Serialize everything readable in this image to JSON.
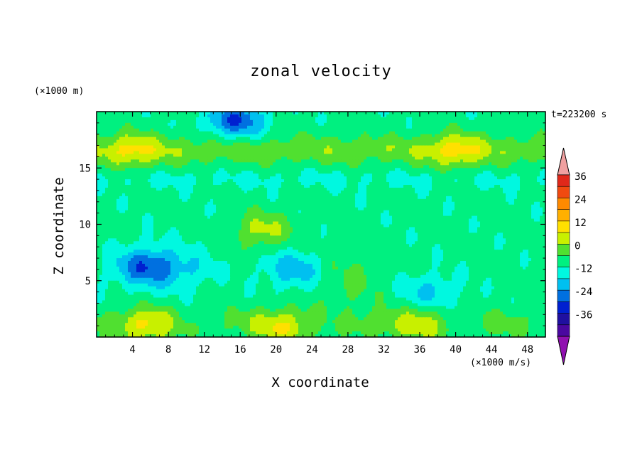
{
  "chart_data": {
    "type": "heatmap",
    "title": "zonal velocity",
    "xlabel": "X coordinate",
    "ylabel": "Z coordinate",
    "x_unit": "(×1000 m/s)",
    "y_unit": "(×1000 m)",
    "time_label": "t=223200 s",
    "xlim": [
      0,
      50
    ],
    "ylim": [
      0,
      20
    ],
    "x_ticks": [
      4,
      8,
      12,
      16,
      20,
      24,
      28,
      32,
      36,
      40,
      44,
      48
    ],
    "y_ticks": [
      5,
      10,
      15
    ],
    "colorbar": {
      "ticks": [
        36,
        24,
        12,
        0,
        -12,
        -24,
        -36
      ],
      "levels": [
        {
          "v": 36,
          "color": "#e0281a"
        },
        {
          "v": 30,
          "color": "#f04a10"
        },
        {
          "v": 24,
          "color": "#ff8a00"
        },
        {
          "v": 18,
          "color": "#ffb000"
        },
        {
          "v": 12,
          "color": "#ffe000"
        },
        {
          "v": 6,
          "color": "#c8f000"
        },
        {
          "v": 0,
          "color": "#50e030"
        },
        {
          "v": -6,
          "color": "#00f080"
        },
        {
          "v": -12,
          "color": "#00f8e0"
        },
        {
          "v": -18,
          "color": "#00c0f0"
        },
        {
          "v": -24,
          "color": "#0070e0"
        },
        {
          "v": -30,
          "color": "#0020d0"
        },
        {
          "v": -36,
          "color": "#2010a0"
        },
        {
          "v": -42,
          "color": "#4a08a0"
        }
      ],
      "over_color": "#f0a0a0",
      "under_color": "#9010b0"
    },
    "field_features": [
      {
        "x": 15.5,
        "z": 19.2,
        "value": -26,
        "desc": "top"
      },
      {
        "x": 5.5,
        "z": 6.3,
        "value": -20
      },
      {
        "x": 22,
        "z": 6,
        "value": -18
      },
      {
        "x": 18.5,
        "z": 9.5,
        "value": 9
      },
      {
        "x": 40,
        "z": 16.5,
        "value": 9
      },
      {
        "x": 4,
        "z": 16.5,
        "value": 8
      },
      {
        "x": 6,
        "z": 1,
        "value": 11
      },
      {
        "x": 21,
        "z": 0.8,
        "value": 11
      },
      {
        "x": 36,
        "z": 1,
        "value": 9
      },
      {
        "x": 37,
        "z": 4,
        "value": -14
      },
      {
        "x": 10,
        "z": 6,
        "value": -10
      }
    ]
  }
}
